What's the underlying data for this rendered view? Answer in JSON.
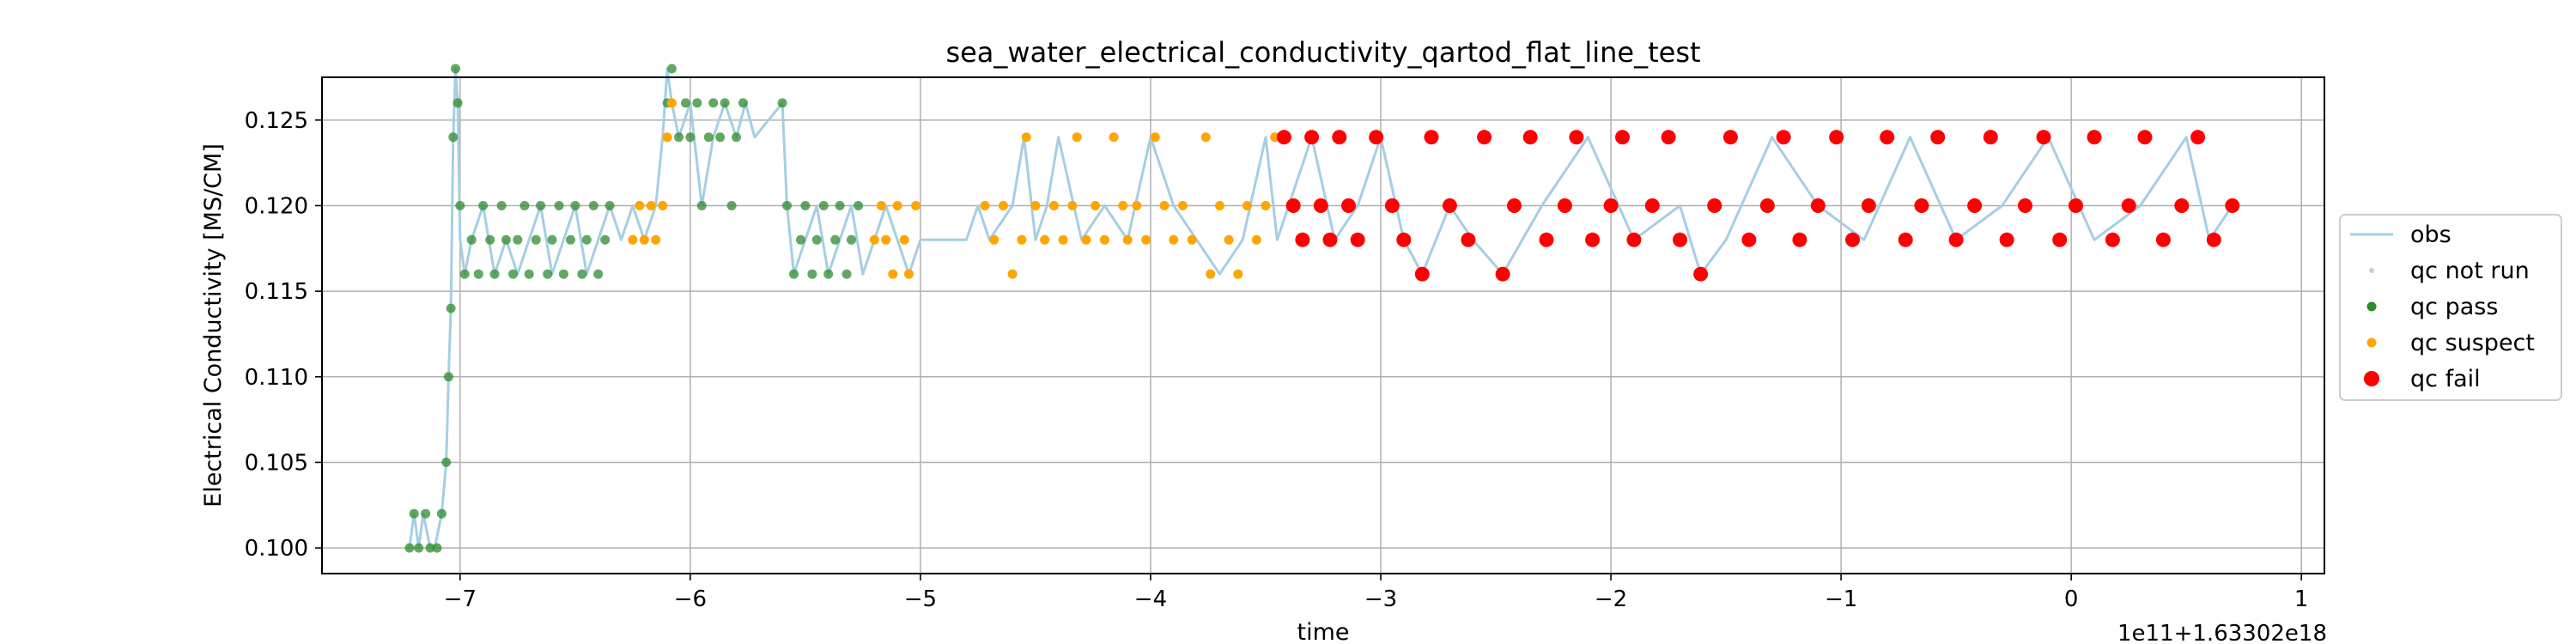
{
  "chart_data": {
    "type": "scatter",
    "title": "sea_water_electrical_conductivity_qartod_flat_line_test",
    "xlabel": "time",
    "ylabel": "Electrical Conductivity [MS/CM]",
    "x_offset_text": "1e11+1.63302e18",
    "xlim": [
      -7.6,
      1.1
    ],
    "ylim": [
      0.0985,
      0.1275
    ],
    "xticks": [
      -7,
      -6,
      -5,
      -4,
      -3,
      -2,
      -1,
      0,
      1
    ],
    "xtick_labels": [
      "−7",
      "−6",
      "−5",
      "−4",
      "−3",
      "−2",
      "−1",
      "0",
      "1"
    ],
    "yticks": [
      0.1,
      0.105,
      0.11,
      0.115,
      0.12,
      0.125
    ],
    "ytick_labels": [
      "0.100",
      "0.105",
      "0.110",
      "0.115",
      "0.120",
      "0.125"
    ],
    "grid": true,
    "legend_placement": "outside-right",
    "colors": {
      "obs": "#a6cee3",
      "qc_not_run": "#cccccc",
      "qc_pass": "#2e8b2e",
      "qc_suspect": "#ffa500",
      "qc_fail": "#ff0000"
    },
    "legend": [
      {
        "key": "obs",
        "label": "obs",
        "kind": "line"
      },
      {
        "key": "qc_not_run",
        "label": "qc not run",
        "kind": "dot-small"
      },
      {
        "key": "qc_pass",
        "label": "qc pass",
        "kind": "dot"
      },
      {
        "key": "qc_suspect",
        "label": "qc suspect",
        "kind": "dot"
      },
      {
        "key": "qc_fail",
        "label": "qc fail",
        "kind": "dot-large"
      }
    ],
    "series": [
      {
        "name": "obs",
        "key": "obs",
        "style": "line",
        "x": [
          -7.22,
          -7.2,
          -7.18,
          -7.16,
          -7.13,
          -7.11,
          -7.08,
          -7.06,
          -7.05,
          -7.04,
          -7.03,
          -7.02,
          -7.01,
          -7.0,
          -6.98,
          -6.95,
          -6.9,
          -6.85,
          -6.8,
          -6.75,
          -6.7,
          -6.65,
          -6.6,
          -6.55,
          -6.5,
          -6.45,
          -6.4,
          -6.35,
          -6.3,
          -6.25,
          -6.2,
          -6.15,
          -6.12,
          -6.1,
          -6.08,
          -6.05,
          -6.0,
          -5.95,
          -5.9,
          -5.85,
          -5.8,
          -5.76,
          -5.72,
          -5.6,
          -5.58,
          -5.55,
          -5.5,
          -5.45,
          -5.4,
          -5.35,
          -5.3,
          -5.25,
          -5.2,
          -5.15,
          -5.1,
          -5.05,
          -5.0,
          -4.8,
          -4.75,
          -4.7,
          -4.6,
          -4.55,
          -4.5,
          -4.45,
          -4.4,
          -4.3,
          -4.2,
          -4.1,
          -4.0,
          -3.9,
          -3.8,
          -3.7,
          -3.6,
          -3.5,
          -3.45,
          -3.4,
          -3.3,
          -3.2,
          -3.1,
          -3.0,
          -2.9,
          -2.82,
          -2.7,
          -2.6,
          -2.47,
          -2.3,
          -2.1,
          -1.9,
          -1.7,
          -1.61,
          -1.5,
          -1.3,
          -1.1,
          -0.9,
          -0.7,
          -0.5,
          -0.3,
          -0.1,
          0.1,
          0.3,
          0.5,
          0.6,
          0.7
        ],
        "y": [
          0.1,
          0.102,
          0.1,
          0.102,
          0.1,
          0.1,
          0.102,
          0.105,
          0.11,
          0.114,
          0.124,
          0.128,
          0.126,
          0.118,
          0.116,
          0.118,
          0.12,
          0.116,
          0.118,
          0.116,
          0.118,
          0.12,
          0.116,
          0.118,
          0.12,
          0.116,
          0.118,
          0.12,
          0.118,
          0.12,
          0.118,
          0.12,
          0.124,
          0.128,
          0.126,
          0.124,
          0.126,
          0.12,
          0.124,
          0.126,
          0.124,
          0.126,
          0.124,
          0.126,
          0.12,
          0.116,
          0.118,
          0.12,
          0.116,
          0.118,
          0.12,
          0.116,
          0.118,
          0.12,
          0.118,
          0.116,
          0.118,
          0.118,
          0.12,
          0.118,
          0.12,
          0.124,
          0.118,
          0.12,
          0.124,
          0.118,
          0.12,
          0.118,
          0.124,
          0.12,
          0.118,
          0.116,
          0.118,
          0.124,
          0.118,
          0.12,
          0.124,
          0.118,
          0.12,
          0.124,
          0.118,
          0.116,
          0.12,
          0.118,
          0.116,
          0.12,
          0.124,
          0.118,
          0.12,
          0.116,
          0.118,
          0.124,
          0.12,
          0.118,
          0.124,
          0.118,
          0.12,
          0.124,
          0.118,
          0.12,
          0.124,
          0.118,
          0.12
        ]
      },
      {
        "name": "qc pass",
        "key": "qc_pass",
        "style": "points",
        "x": [
          -7.22,
          -7.2,
          -7.18,
          -7.15,
          -7.13,
          -7.1,
          -7.08,
          -7.06,
          -7.05,
          -7.04,
          -7.03,
          -7.02,
          -7.01,
          -7.0,
          -6.98,
          -6.95,
          -6.92,
          -6.9,
          -6.87,
          -6.85,
          -6.82,
          -6.8,
          -6.77,
          -6.75,
          -6.72,
          -6.7,
          -6.67,
          -6.65,
          -6.62,
          -6.6,
          -6.57,
          -6.55,
          -6.52,
          -6.5,
          -6.47,
          -6.45,
          -6.42,
          -6.4,
          -6.37,
          -6.35,
          -6.1,
          -6.08,
          -6.05,
          -6.02,
          -6.0,
          -5.97,
          -5.95,
          -5.92,
          -5.9,
          -5.87,
          -5.85,
          -5.82,
          -5.8,
          -5.77,
          -5.6,
          -5.58,
          -5.55,
          -5.52,
          -5.5,
          -5.47,
          -5.45,
          -5.42,
          -5.4,
          -5.37,
          -5.35,
          -5.32,
          -5.3,
          -5.27
        ],
        "y": [
          0.1,
          0.102,
          0.1,
          0.102,
          0.1,
          0.1,
          0.102,
          0.105,
          0.11,
          0.114,
          0.124,
          0.128,
          0.126,
          0.12,
          0.116,
          0.118,
          0.116,
          0.12,
          0.118,
          0.116,
          0.12,
          0.118,
          0.116,
          0.118,
          0.12,
          0.116,
          0.118,
          0.12,
          0.116,
          0.118,
          0.12,
          0.116,
          0.118,
          0.12,
          0.116,
          0.118,
          0.12,
          0.116,
          0.118,
          0.12,
          0.126,
          0.128,
          0.124,
          0.126,
          0.124,
          0.126,
          0.12,
          0.124,
          0.126,
          0.124,
          0.126,
          0.12,
          0.124,
          0.126,
          0.126,
          0.12,
          0.116,
          0.118,
          0.12,
          0.116,
          0.118,
          0.12,
          0.116,
          0.118,
          0.12,
          0.116,
          0.118,
          0.12
        ]
      },
      {
        "name": "qc suspect",
        "key": "qc_suspect",
        "style": "points",
        "x": [
          -6.25,
          -6.22,
          -6.2,
          -6.17,
          -6.15,
          -6.12,
          -6.1,
          -6.08,
          -5.2,
          -5.17,
          -5.15,
          -5.12,
          -5.1,
          -5.07,
          -5.05,
          -5.02,
          -4.72,
          -4.68,
          -4.64,
          -4.6,
          -4.56,
          -4.54,
          -4.5,
          -4.46,
          -4.42,
          -4.38,
          -4.34,
          -4.32,
          -4.28,
          -4.24,
          -4.2,
          -4.16,
          -4.12,
          -4.1,
          -4.06,
          -4.02,
          -3.98,
          -3.94,
          -3.9,
          -3.86,
          -3.82,
          -3.76,
          -3.74,
          -3.7,
          -3.66,
          -3.62,
          -3.58,
          -3.54,
          -3.5,
          -3.46
        ],
        "y": [
          0.118,
          0.12,
          0.118,
          0.12,
          0.118,
          0.12,
          0.124,
          0.126,
          0.118,
          0.12,
          0.118,
          0.116,
          0.12,
          0.118,
          0.116,
          0.12,
          0.12,
          0.118,
          0.12,
          0.116,
          0.118,
          0.124,
          0.12,
          0.118,
          0.12,
          0.118,
          0.12,
          0.124,
          0.118,
          0.12,
          0.118,
          0.124,
          0.12,
          0.118,
          0.12,
          0.118,
          0.124,
          0.12,
          0.118,
          0.12,
          0.118,
          0.124,
          0.116,
          0.12,
          0.118,
          0.116,
          0.12,
          0.118,
          0.12,
          0.124
        ]
      },
      {
        "name": "qc fail",
        "key": "qc_fail",
        "style": "points",
        "x": [
          -3.42,
          -3.38,
          -3.34,
          -3.3,
          -3.26,
          -3.22,
          -3.18,
          -3.14,
          -3.1,
          -3.02,
          -2.95,
          -2.9,
          -2.82,
          -2.78,
          -2.7,
          -2.62,
          -2.55,
          -2.47,
          -2.42,
          -2.35,
          -2.28,
          -2.2,
          -2.15,
          -2.08,
          -2.0,
          -1.95,
          -1.9,
          -1.82,
          -1.75,
          -1.7,
          -1.61,
          -1.55,
          -1.48,
          -1.4,
          -1.32,
          -1.25,
          -1.18,
          -1.1,
          -1.02,
          -0.95,
          -0.88,
          -0.8,
          -0.72,
          -0.65,
          -0.58,
          -0.5,
          -0.42,
          -0.35,
          -0.28,
          -0.2,
          -0.12,
          -0.05,
          0.02,
          0.1,
          0.18,
          0.25,
          0.32,
          0.4,
          0.48,
          0.55,
          0.62,
          0.7
        ],
        "y": [
          0.124,
          0.12,
          0.118,
          0.124,
          0.12,
          0.118,
          0.124,
          0.12,
          0.118,
          0.124,
          0.12,
          0.118,
          0.116,
          0.124,
          0.12,
          0.118,
          0.124,
          0.116,
          0.12,
          0.124,
          0.118,
          0.12,
          0.124,
          0.118,
          0.12,
          0.124,
          0.118,
          0.12,
          0.124,
          0.118,
          0.116,
          0.12,
          0.124,
          0.118,
          0.12,
          0.124,
          0.118,
          0.12,
          0.124,
          0.118,
          0.12,
          0.124,
          0.118,
          0.12,
          0.124,
          0.118,
          0.12,
          0.124,
          0.118,
          0.12,
          0.124,
          0.118,
          0.12,
          0.124,
          0.118,
          0.12,
          0.124,
          0.118,
          0.12,
          0.124,
          0.118,
          0.12
        ]
      }
    ]
  }
}
